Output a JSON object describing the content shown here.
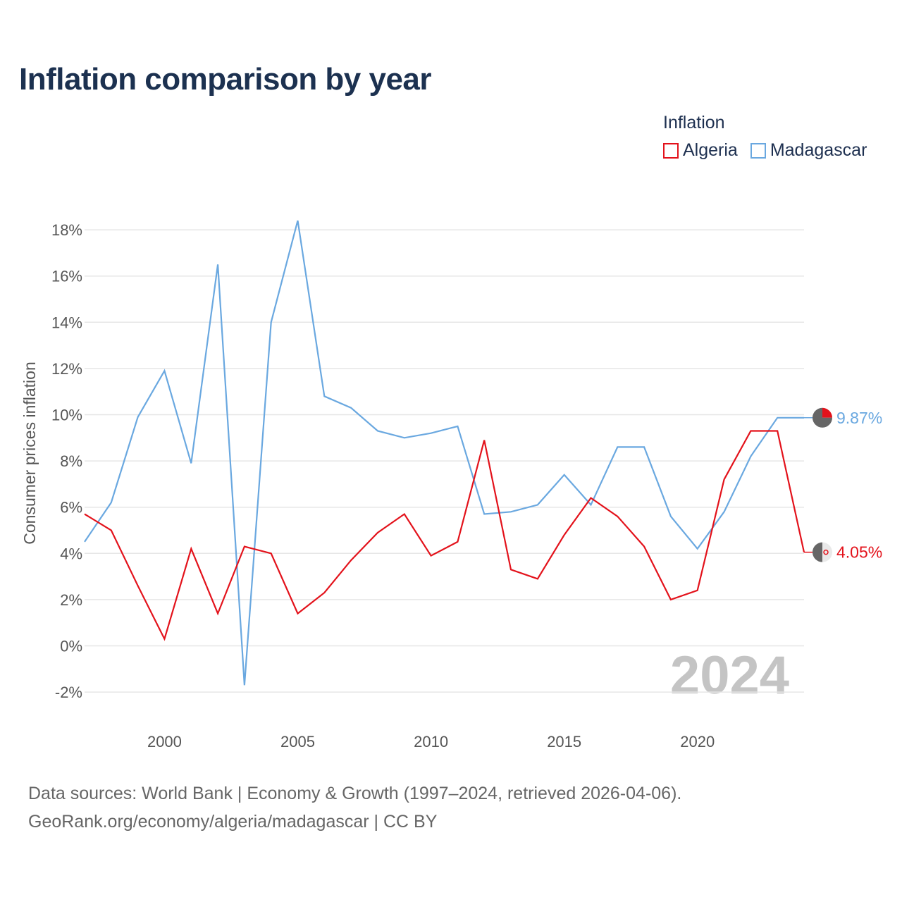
{
  "title": "Inflation comparison by year",
  "legend": {
    "title": "Inflation",
    "items": [
      {
        "label": "Algeria",
        "color": "#e3121b"
      },
      {
        "label": "Madagascar",
        "color": "#6aa8e0"
      }
    ]
  },
  "source": {
    "line1": "Data sources: World Bank | Economy & Growth (1997–2024, retrieved 2026-04-06).",
    "line2": "GeoRank.org/economy/algeria/madagascar | CC BY"
  },
  "chart_data": {
    "type": "line",
    "title": "Inflation comparison by year",
    "xlabel": "",
    "ylabel": "Consumer prices inflation",
    "x": [
      1997,
      1998,
      1999,
      2000,
      2001,
      2002,
      2003,
      2004,
      2005,
      2006,
      2007,
      2008,
      2009,
      2010,
      2011,
      2012,
      2013,
      2014,
      2015,
      2016,
      2017,
      2018,
      2019,
      2020,
      2021,
      2022,
      2023,
      2024
    ],
    "xlim": [
      1997,
      2024
    ],
    "xticks": [
      2000,
      2005,
      2010,
      2015,
      2020
    ],
    "ylim": [
      -2.5,
      18.5
    ],
    "yticks": [
      -2,
      0,
      2,
      4,
      6,
      8,
      10,
      12,
      14,
      16,
      18
    ],
    "ytick_labels": [
      "-2%",
      "0%",
      "2%",
      "4%",
      "6%",
      "8%",
      "10%",
      "12%",
      "14%",
      "16%",
      "18%"
    ],
    "grid": true,
    "watermark_year": "2024",
    "series": [
      {
        "name": "Algeria",
        "color": "#e3121b",
        "values": [
          5.7,
          5.0,
          2.6,
          0.3,
          4.2,
          1.4,
          4.3,
          4.0,
          1.4,
          2.3,
          3.7,
          4.9,
          5.7,
          3.9,
          4.5,
          8.9,
          3.3,
          2.9,
          4.8,
          6.4,
          5.6,
          4.3,
          2.0,
          2.4,
          7.2,
          9.3,
          9.3,
          4.05
        ],
        "end_label": "4.05%"
      },
      {
        "name": "Madagascar",
        "color": "#6aa8e0",
        "values": [
          4.5,
          6.2,
          9.9,
          11.9,
          7.9,
          16.5,
          -1.7,
          14.0,
          18.4,
          10.8,
          10.3,
          9.3,
          9.0,
          9.2,
          9.5,
          5.7,
          5.8,
          6.1,
          7.4,
          6.1,
          8.6,
          8.6,
          5.6,
          4.2,
          5.8,
          8.2,
          9.87,
          9.87
        ],
        "end_label": "9.87%"
      }
    ]
  }
}
